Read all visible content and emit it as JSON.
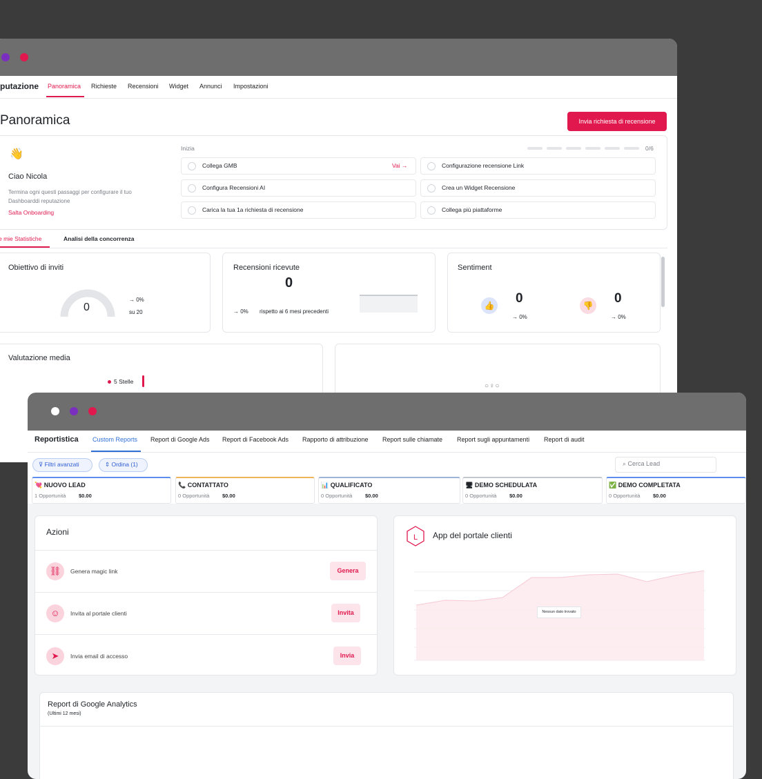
{
  "window1": {
    "brand": "putazione",
    "tabs": [
      "Panoramica",
      "Richieste",
      "Recensioni",
      "Widget",
      "Annunci",
      "Impostazioni"
    ],
    "title": "Panoramica",
    "cta": "Invia richiesta di recensione",
    "onboarding": {
      "greeting": "Ciao Nicola",
      "text": "Termina ogni questi passaggi per configurare il tuo Dashboarddi reputazione",
      "skip": "Salta Onboarding",
      "heading": "Inizia",
      "progress": "0/6",
      "go": "Vai →",
      "steps": [
        "Collega GMB",
        "Configurazione recensione Link",
        "Configura Recensioni AI",
        "Crea un Widget Recensione",
        "Carica la tua 1a richiesta di recensione",
        "Collega più piattaforme"
      ]
    },
    "subtabs": [
      "e mie Statistiche",
      "Analisi della concorrenza"
    ],
    "invites": {
      "title": "Obiettivo di inviti",
      "value": 0,
      "change": "→ 0%",
      "target": "su 20"
    },
    "reviews": {
      "title": "Recensioni ricevute",
      "value": 0,
      "change": "→ 0%",
      "note": "rispetto ai 6 mesi precedenti"
    },
    "sentiment": {
      "title": "Sentiment",
      "positive": 0,
      "positive_change": "→ 0%",
      "negative": 0,
      "negative_change": "→ 0%"
    },
    "rating": {
      "title": "Valutazione media",
      "legend": "5 Stelle"
    }
  },
  "window2": {
    "brand": "Reportistica",
    "tabs": [
      "Custom Reports",
      "Report di Google Ads",
      "Report di Facebook Ads",
      "Rapporto di attribuzione",
      "Report sulle chiamate",
      "Report sugli appuntamenti",
      "Report di audit"
    ],
    "filters": [
      "Filtri avanzati",
      "Ordina (1)"
    ],
    "search": "Cerca Lead",
    "stages": [
      {
        "name": "💘 NUOVO LEAD",
        "count": "1 Opportunità",
        "amount": "$0.00"
      },
      {
        "name": "📞 CONTATTATO",
        "count": "0 Opportunità",
        "amount": "$0.00"
      },
      {
        "name": "📊 QUALIFICATO",
        "count": "0 Opportunità",
        "amount": "$0.00"
      },
      {
        "name": "🖥 DEMO SCHEDULATA",
        "count": "0 Opportunità",
        "amount": "$0.00"
      },
      {
        "name": "✅ DEMO COMPLETATA",
        "count": "0 Opportunità",
        "amount": "$0.00"
      }
    ],
    "actions": {
      "title": "Azioni",
      "items": [
        {
          "label": "Genera magic link",
          "button": "Genera"
        },
        {
          "label": "Invita al portale clienti",
          "button": "Invita"
        },
        {
          "label": "Invia email di accesso",
          "button": "Invia"
        }
      ]
    },
    "portal": {
      "title": "App del portale clienti",
      "empty": "Nessun dato trovato"
    },
    "analytics": {
      "title": "Report di Google Analytics",
      "subtitle": "(Ultimi 12 mesi)"
    }
  }
}
